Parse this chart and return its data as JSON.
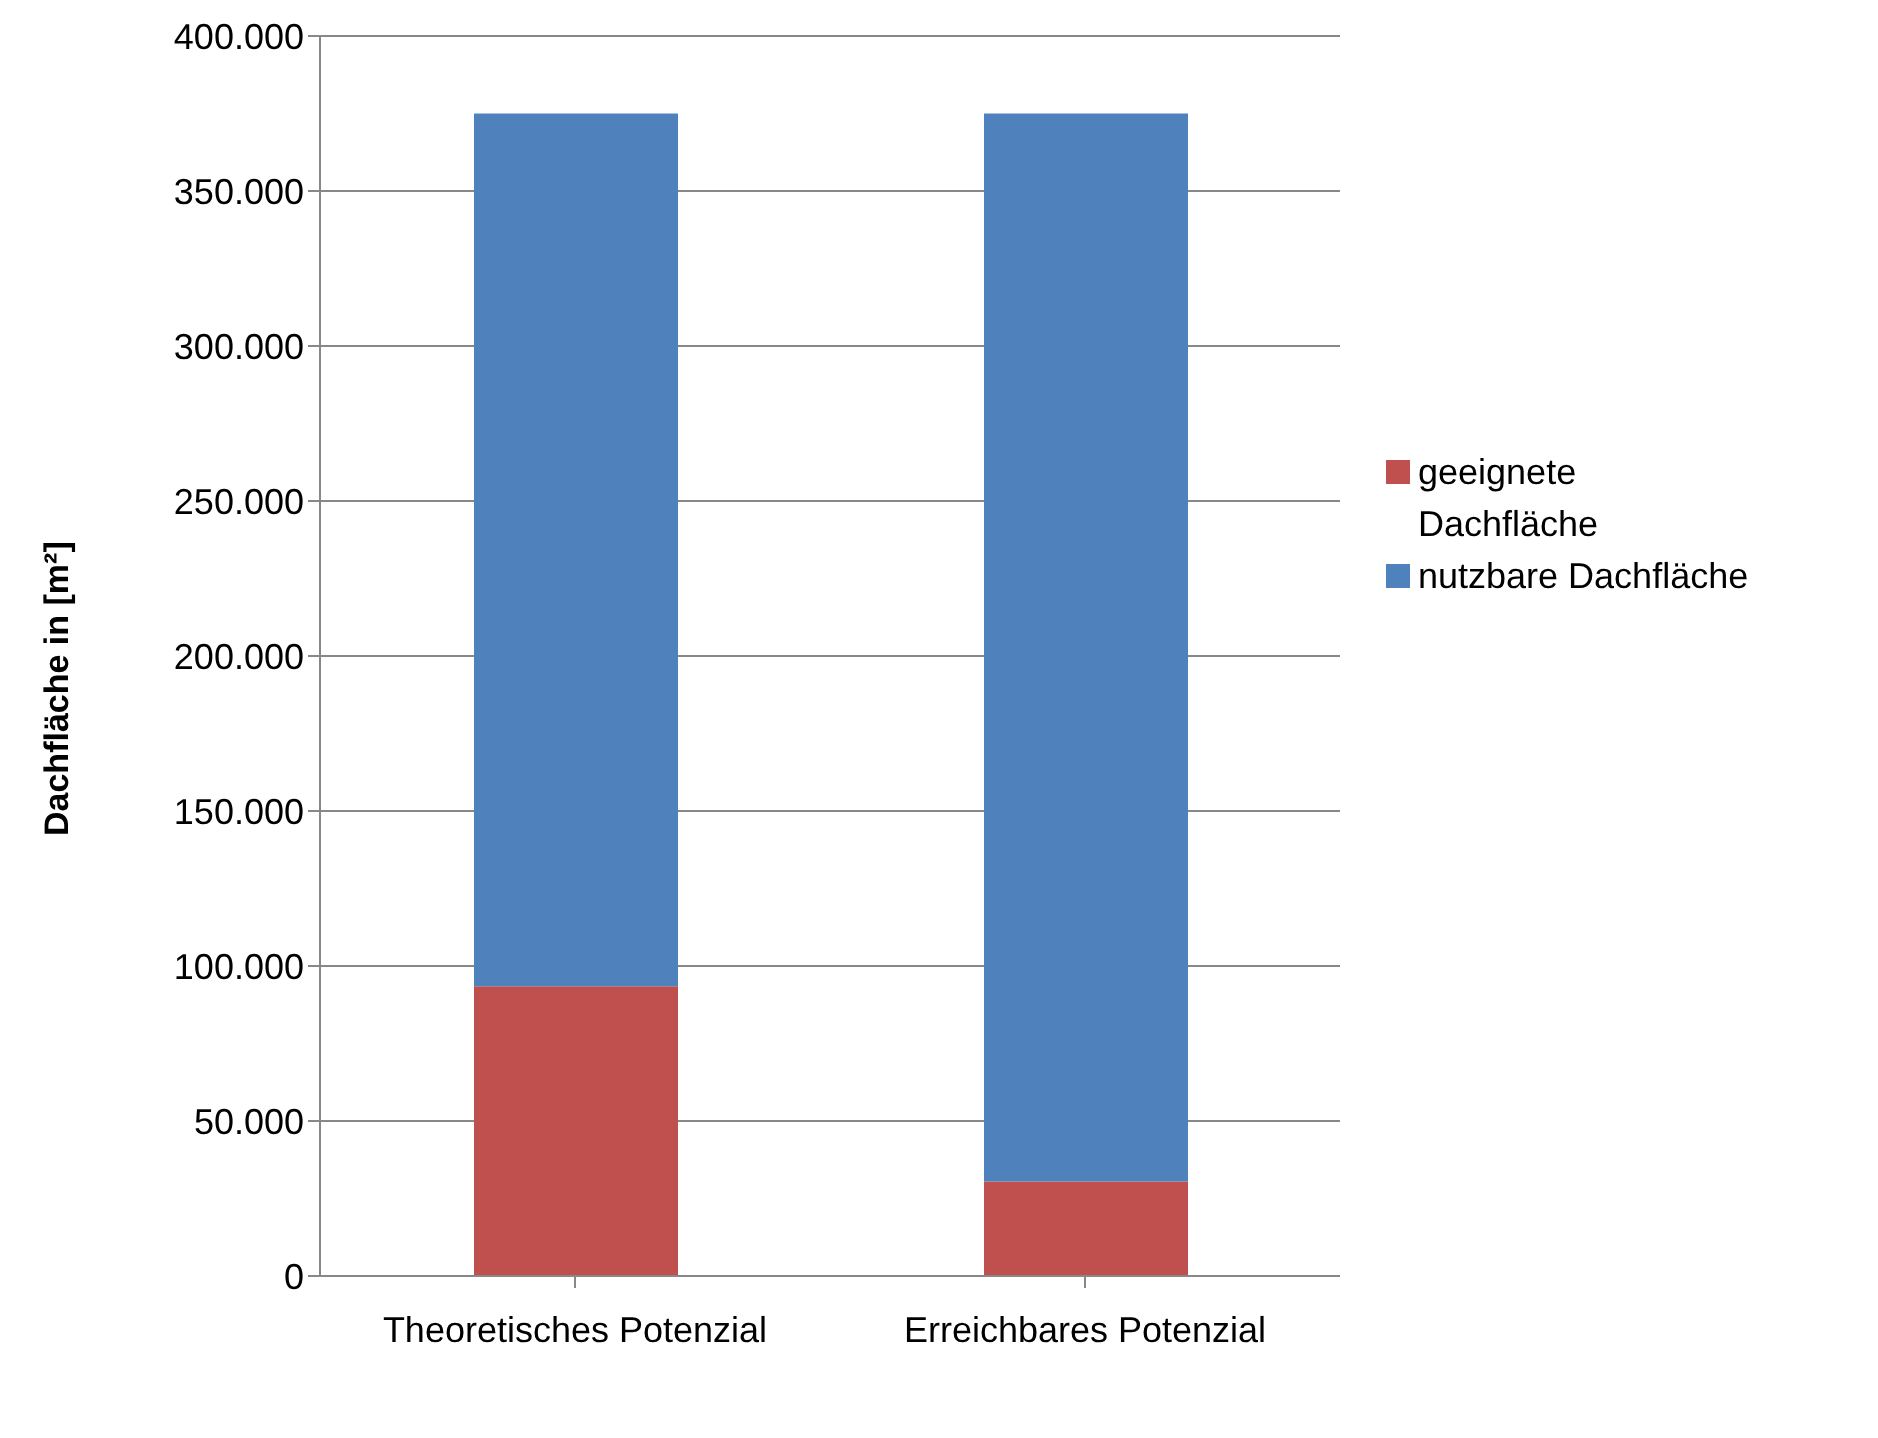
{
  "chart_data": {
    "type": "bar",
    "stacked": true,
    "ylabel": "Dachfläche in [m²]",
    "categories": [
      "Theoretisches Potenzial",
      "Erreichbares Potenzial"
    ],
    "series": [
      {
        "name": "geeignete Dachfläche",
        "color": "#c0504d",
        "values": [
          93500,
          30500
        ]
      },
      {
        "name": "nutzbare Dachfläche",
        "color": "#4f81bd",
        "values": [
          281500,
          344500
        ]
      }
    ],
    "ylim": [
      0,
      400000
    ],
    "yticks": [
      {
        "value": 0,
        "label": "0"
      },
      {
        "value": 50000,
        "label": "50.000"
      },
      {
        "value": 100000,
        "label": "100.000"
      },
      {
        "value": 150000,
        "label": "150.000"
      },
      {
        "value": 200000,
        "label": "200.000"
      },
      {
        "value": 250000,
        "label": "250.000"
      },
      {
        "value": 300000,
        "label": "300.000"
      },
      {
        "value": 350000,
        "label": "350.000"
      },
      {
        "value": 400000,
        "label": "400.000"
      }
    ],
    "grid": "y",
    "legend": "right"
  }
}
